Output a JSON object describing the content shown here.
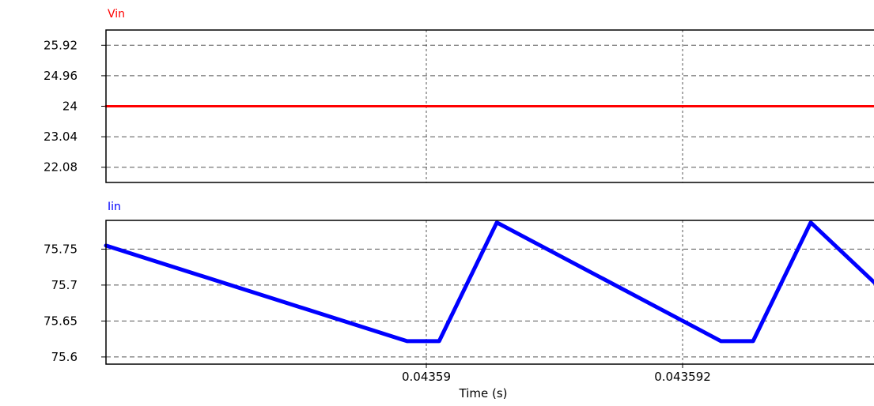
{
  "chart_data": [
    {
      "type": "line",
      "title": "Vin",
      "title_color": "#ff0000",
      "series": [
        {
          "name": "Vin",
          "color": "#ff0000",
          "x": [
            0.0435875,
            0.0435935
          ],
          "y": [
            24,
            24
          ]
        }
      ],
      "yticks": [
        "25.92",
        "24.96",
        "24",
        "23.04",
        "22.08"
      ],
      "ylim": [
        21.6,
        26.4
      ],
      "xlim": [
        0.0435875,
        0.0435935
      ],
      "grid": true
    },
    {
      "type": "line",
      "title": "Iin",
      "title_color": "#0000ff",
      "series": [
        {
          "name": "Iin",
          "color": "#0000ff",
          "x": [
            0.0435875,
            0.04358985,
            0.0435901,
            0.04359055,
            0.0435923,
            0.04359255,
            0.043593,
            0.0435935
          ],
          "y": [
            75.755,
            75.622,
            75.622,
            75.787,
            75.622,
            75.622,
            75.787,
            75.703
          ]
        }
      ],
      "yticks": [
        "75.75",
        "75.7",
        "75.65",
        "75.6"
      ],
      "ylim": [
        75.59,
        75.79
      ],
      "xlim": [
        0.0435875,
        0.0435935
      ],
      "xticks": [
        "0.04359",
        "0.043592"
      ],
      "xtick_values": [
        0.04359,
        0.043592
      ],
      "xlabel": "Time (s)",
      "grid": true
    }
  ]
}
